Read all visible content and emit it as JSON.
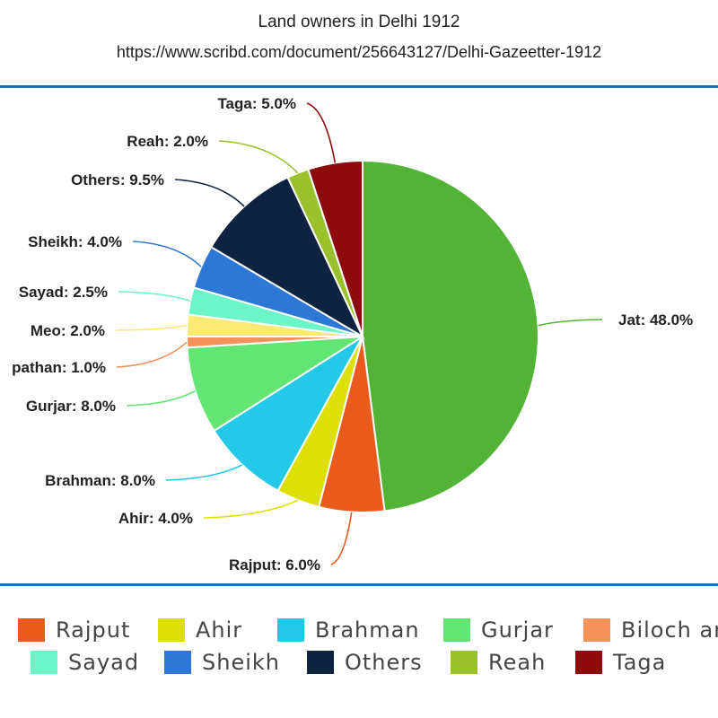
{
  "chart_data": {
    "type": "pie",
    "title": "Land owners in Delhi 1912",
    "subtitle": "https://www.scribd.com/document/256643127/Delhi-Gazeetter-1912",
    "slices": [
      {
        "name": "Jat",
        "value": 48.0,
        "color": "#52b336",
        "label": "Jat: 48.0%"
      },
      {
        "name": "Rajput",
        "value": 6.0,
        "color": "#ea5a1d",
        "label": "Rajput: 6.0%"
      },
      {
        "name": "Ahir",
        "value": 4.0,
        "color": "#dde007",
        "label": "Ahir: 4.0%"
      },
      {
        "name": "Brahman",
        "value": 8.0,
        "color": "#23c9e6",
        "label": "Brahman: 8.0%"
      },
      {
        "name": "Gurjar",
        "value": 8.0,
        "color": "#62e572",
        "label": "Gurjar: 8.0%"
      },
      {
        "name": "Biloch and pathan",
        "value": 1.0,
        "color": "#f3935b",
        "label": "pathan: 1.0%"
      },
      {
        "name": "Meo",
        "value": 2.0,
        "color": "#f9ea73",
        "label": "Meo: 2.0%"
      },
      {
        "name": "Sayad",
        "value": 2.5,
        "color": "#6bf5c9",
        "label": "Sayad: 2.5%"
      },
      {
        "name": "Sheikh",
        "value": 4.0,
        "color": "#2f77d6",
        "label": "Sheikh: 4.0%"
      },
      {
        "name": "Others",
        "value": 9.5,
        "color": "#0e233f",
        "label": "Others: 9.5%"
      },
      {
        "name": "Reah",
        "value": 2.0,
        "color": "#99c12b",
        "label": "Reah: 2.0%"
      },
      {
        "name": "Taga",
        "value": 5.0,
        "color": "#8e0b0b",
        "label": "Taga: 5.0%"
      }
    ],
    "legend": {
      "placement": "bottom",
      "items": [
        {
          "label": "Rajput",
          "color": "#ea5a1d"
        },
        {
          "label": "Ahir",
          "color": "#dde007"
        },
        {
          "label": "Brahman",
          "color": "#23c9e6"
        },
        {
          "label": "Gurjar",
          "color": "#62e572"
        },
        {
          "label": "Biloch and pathan",
          "color": "#f3935b"
        },
        {
          "label": "Sayad",
          "color": "#6bf5c9"
        },
        {
          "label": "Sheikh",
          "color": "#2f77d6"
        },
        {
          "label": "Others",
          "color": "#0e233f"
        },
        {
          "label": "Reah",
          "color": "#99c12b"
        },
        {
          "label": "Taga",
          "color": "#8e0b0b"
        }
      ]
    }
  }
}
